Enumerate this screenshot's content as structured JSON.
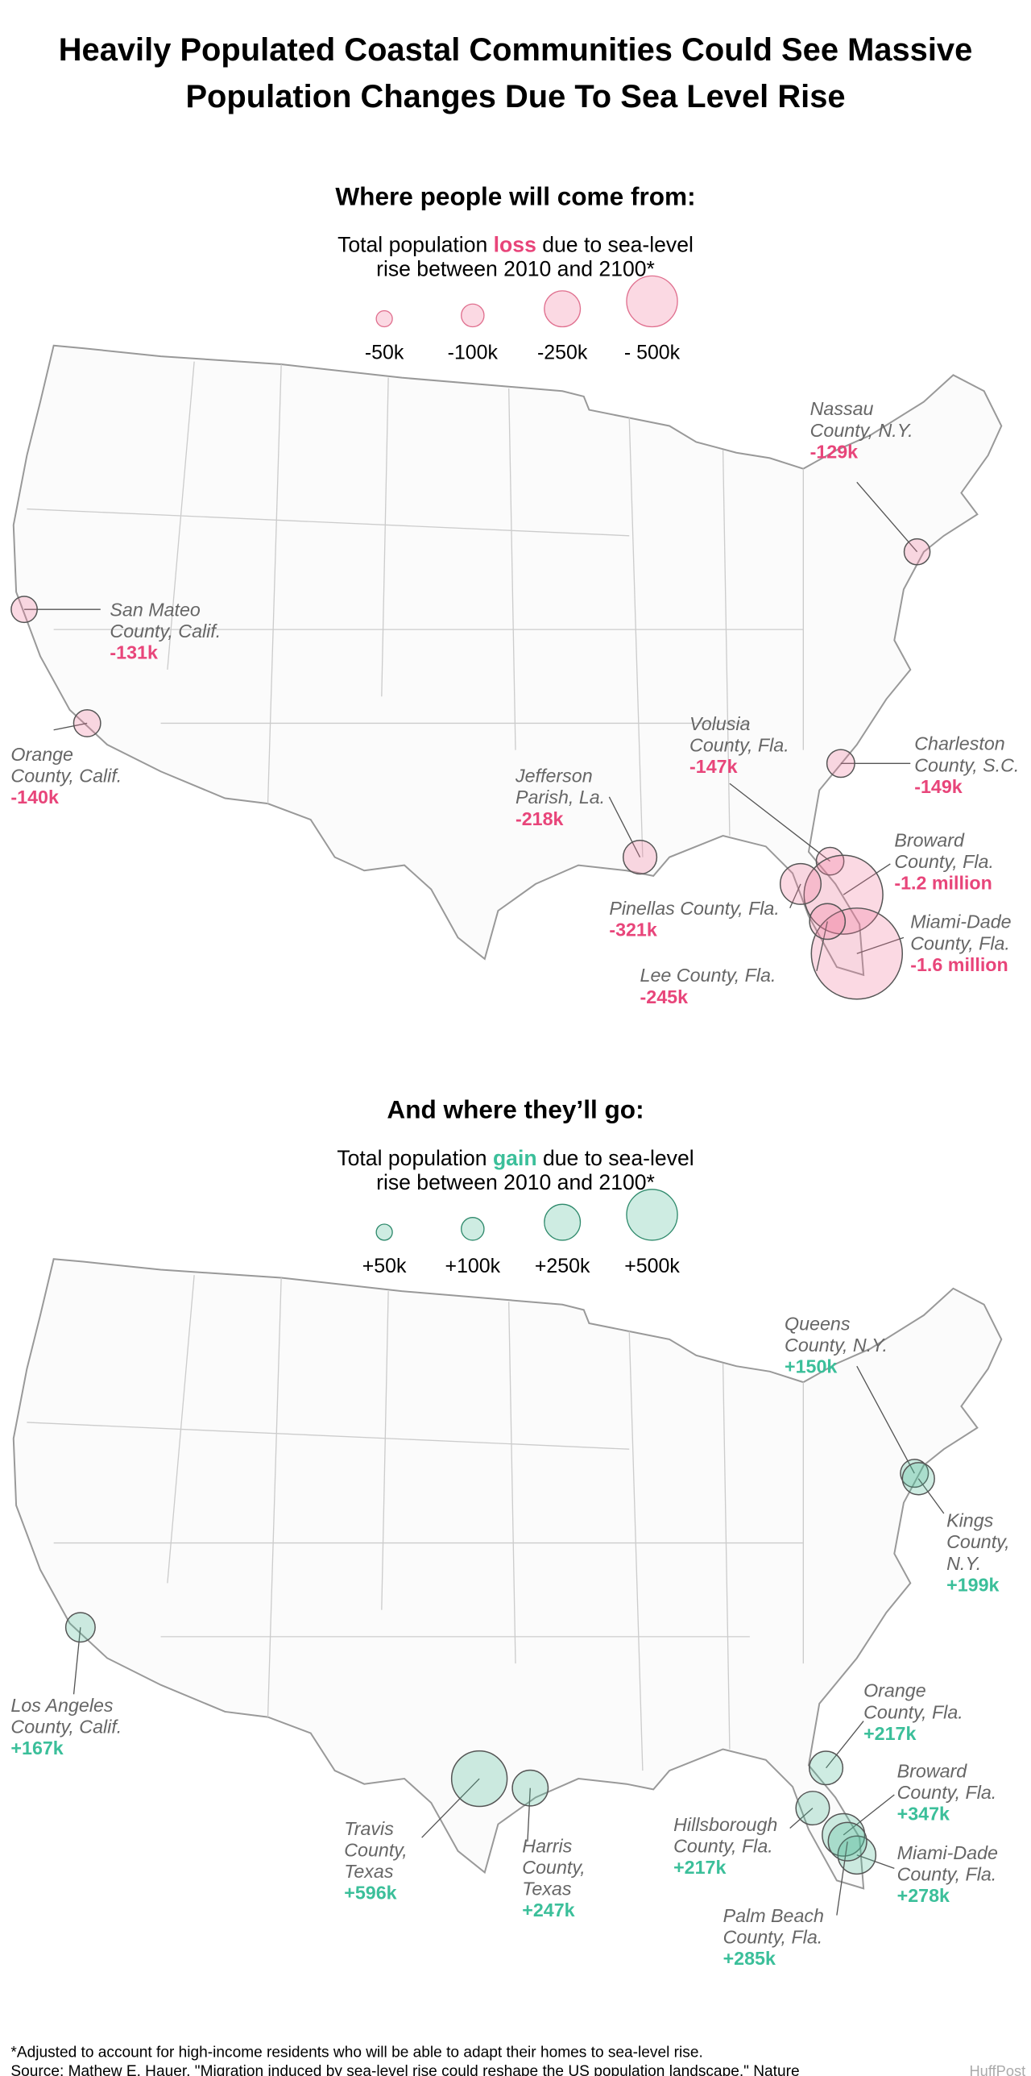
{
  "title": [
    "Heavily Populated Coastal Communities Could See Massive",
    "Population Changes Due To Sea Level Rise"
  ],
  "maps": [
    {
      "heading": "Where people will come from:",
      "subtitle": [
        "Total population",
        "loss",
        "due to sea-level",
        "rise between 2010 and 2100*"
      ],
      "color": "#e8457a",
      "fill": "rgba(240,120,155,0.28)",
      "stroke": "#e0708f",
      "legend": [
        {
          "value": -50000,
          "label": "-50k"
        },
        {
          "value": -100000,
          "label": "-100k"
        },
        {
          "value": -250000,
          "label": "-250k"
        },
        {
          "value": -500000,
          "label": "- 500k"
        }
      ],
      "annotations": [
        {
          "name": [
            "Nassau",
            "County, N.Y."
          ],
          "value": -129000,
          "label": "-129k"
        },
        {
          "name": [
            "San Mateo",
            "County, Calif."
          ],
          "value": -131000,
          "label": "-131k"
        },
        {
          "name": [
            "Orange",
            "County, Calif."
          ],
          "value": -140000,
          "label": "-140k"
        },
        {
          "name": [
            "Jefferson",
            "Parish, La."
          ],
          "value": -218000,
          "label": "-218k"
        },
        {
          "name": [
            "Volusia",
            "County, Fla."
          ],
          "value": -147000,
          "label": "-147k"
        },
        {
          "name": [
            "Charleston",
            "County, S.C."
          ],
          "value": -149000,
          "label": "-149k"
        },
        {
          "name": [
            "Broward",
            "County, Fla."
          ],
          "value": -1200000,
          "label": "-1.2 million"
        },
        {
          "name": [
            "Pinellas County, Fla."
          ],
          "value": -321000,
          "label": "-321k"
        },
        {
          "name": [
            "Miami-Dade",
            "County, Fla."
          ],
          "value": -1600000,
          "label": "-1.6 million"
        },
        {
          "name": [
            "Lee County, Fla."
          ],
          "value": -245000,
          "label": "-245k"
        }
      ]
    },
    {
      "heading": "And where they’ll go:",
      "subtitle": [
        "Total population",
        "gain",
        "due to sea-level",
        "rise between 2010 and 2100*"
      ],
      "color": "#3bbf9a",
      "fill": "rgba(80,185,150,0.28)",
      "stroke": "#2f8a6c",
      "legend": [
        {
          "value": 50000,
          "label": "+50k"
        },
        {
          "value": 100000,
          "label": "+100k"
        },
        {
          "value": 250000,
          "label": "+250k"
        },
        {
          "value": 500000,
          "label": "+500k"
        }
      ],
      "annotations": [
        {
          "name": [
            "Queens",
            "County, N.Y."
          ],
          "value": 150000,
          "label": "+150k"
        },
        {
          "name": [
            "Kings",
            "County,",
            "N.Y."
          ],
          "value": 199000,
          "label": "+199k"
        },
        {
          "name": [
            "Los Angeles",
            "County, Calif."
          ],
          "value": 167000,
          "label": "+167k"
        },
        {
          "name": [
            "Travis",
            "County,",
            "Texas"
          ],
          "value": 596000,
          "label": "+596k"
        },
        {
          "name": [
            "Harris",
            "County,",
            "Texas"
          ],
          "value": 247000,
          "label": "+247k"
        },
        {
          "name": [
            "Orange",
            "County, Fla."
          ],
          "value": 217000,
          "label": "+217k"
        },
        {
          "name": [
            "Broward",
            "County, Fla."
          ],
          "value": 347000,
          "label": "+347k"
        },
        {
          "name": [
            "Hillsborough",
            "County, Fla."
          ],
          "value": 217000,
          "label": "+217k"
        },
        {
          "name": [
            "Miami-Dade",
            "County, Fla."
          ],
          "value": 278000,
          "label": "+278k"
        },
        {
          "name": [
            "Palm Beach",
            "County, Fla."
          ],
          "value": 285000,
          "label": "+285k"
        }
      ]
    }
  ],
  "footnote": "*Adjusted to account for high-income residents who will be able to adapt their homes to sea-level rise.",
  "source": "Source: Mathew E. Hauer, \"Migration induced by sea-level rise could reshape the US population landscape,\" Nature",
  "credit": "HuffPost"
}
